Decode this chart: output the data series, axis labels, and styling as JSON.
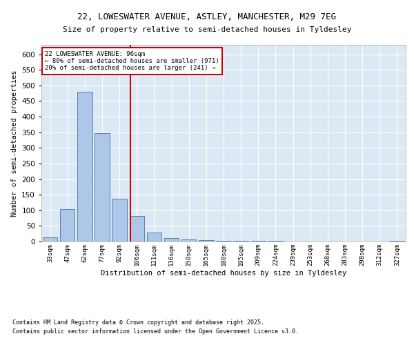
{
  "title": "22, LOWESWATER AVENUE, ASTLEY, MANCHESTER, M29 7EG",
  "subtitle": "Size of property relative to semi-detached houses in Tyldesley",
  "xlabel": "Distribution of semi-detached houses by size in Tyldesley",
  "ylabel": "Number of semi-detached properties",
  "categories": [
    "33sqm",
    "47sqm",
    "62sqm",
    "77sqm",
    "92sqm",
    "106sqm",
    "121sqm",
    "136sqm",
    "150sqm",
    "165sqm",
    "180sqm",
    "195sqm",
    "209sqm",
    "224sqm",
    "239sqm",
    "253sqm",
    "268sqm",
    "283sqm",
    "298sqm",
    "312sqm",
    "327sqm"
  ],
  "values": [
    13,
    105,
    480,
    347,
    138,
    82,
    29,
    10,
    6,
    4,
    3,
    2,
    2,
    2,
    1,
    1,
    1,
    1,
    1,
    1,
    2
  ],
  "bar_color": "#aec6e8",
  "bar_edge_color": "#5580b0",
  "bg_color": "#dce9f5",
  "grid_color": "#ffffff",
  "property_label": "22 LOWESWATER AVENUE: 96sqm",
  "smaller_pct": 80,
  "smaller_count": 971,
  "larger_pct": 20,
  "larger_count": 241,
  "red_line_color": "#cc0000",
  "annotation_box_color": "#cc0000",
  "ylim": [
    0,
    630
  ],
  "yticks": [
    0,
    50,
    100,
    150,
    200,
    250,
    300,
    350,
    400,
    450,
    500,
    550,
    600
  ],
  "red_line_x": 4.64,
  "footer_line1": "Contains HM Land Registry data © Crown copyright and database right 2025.",
  "footer_line2": "Contains public sector information licensed under the Open Government Licence v3.0."
}
